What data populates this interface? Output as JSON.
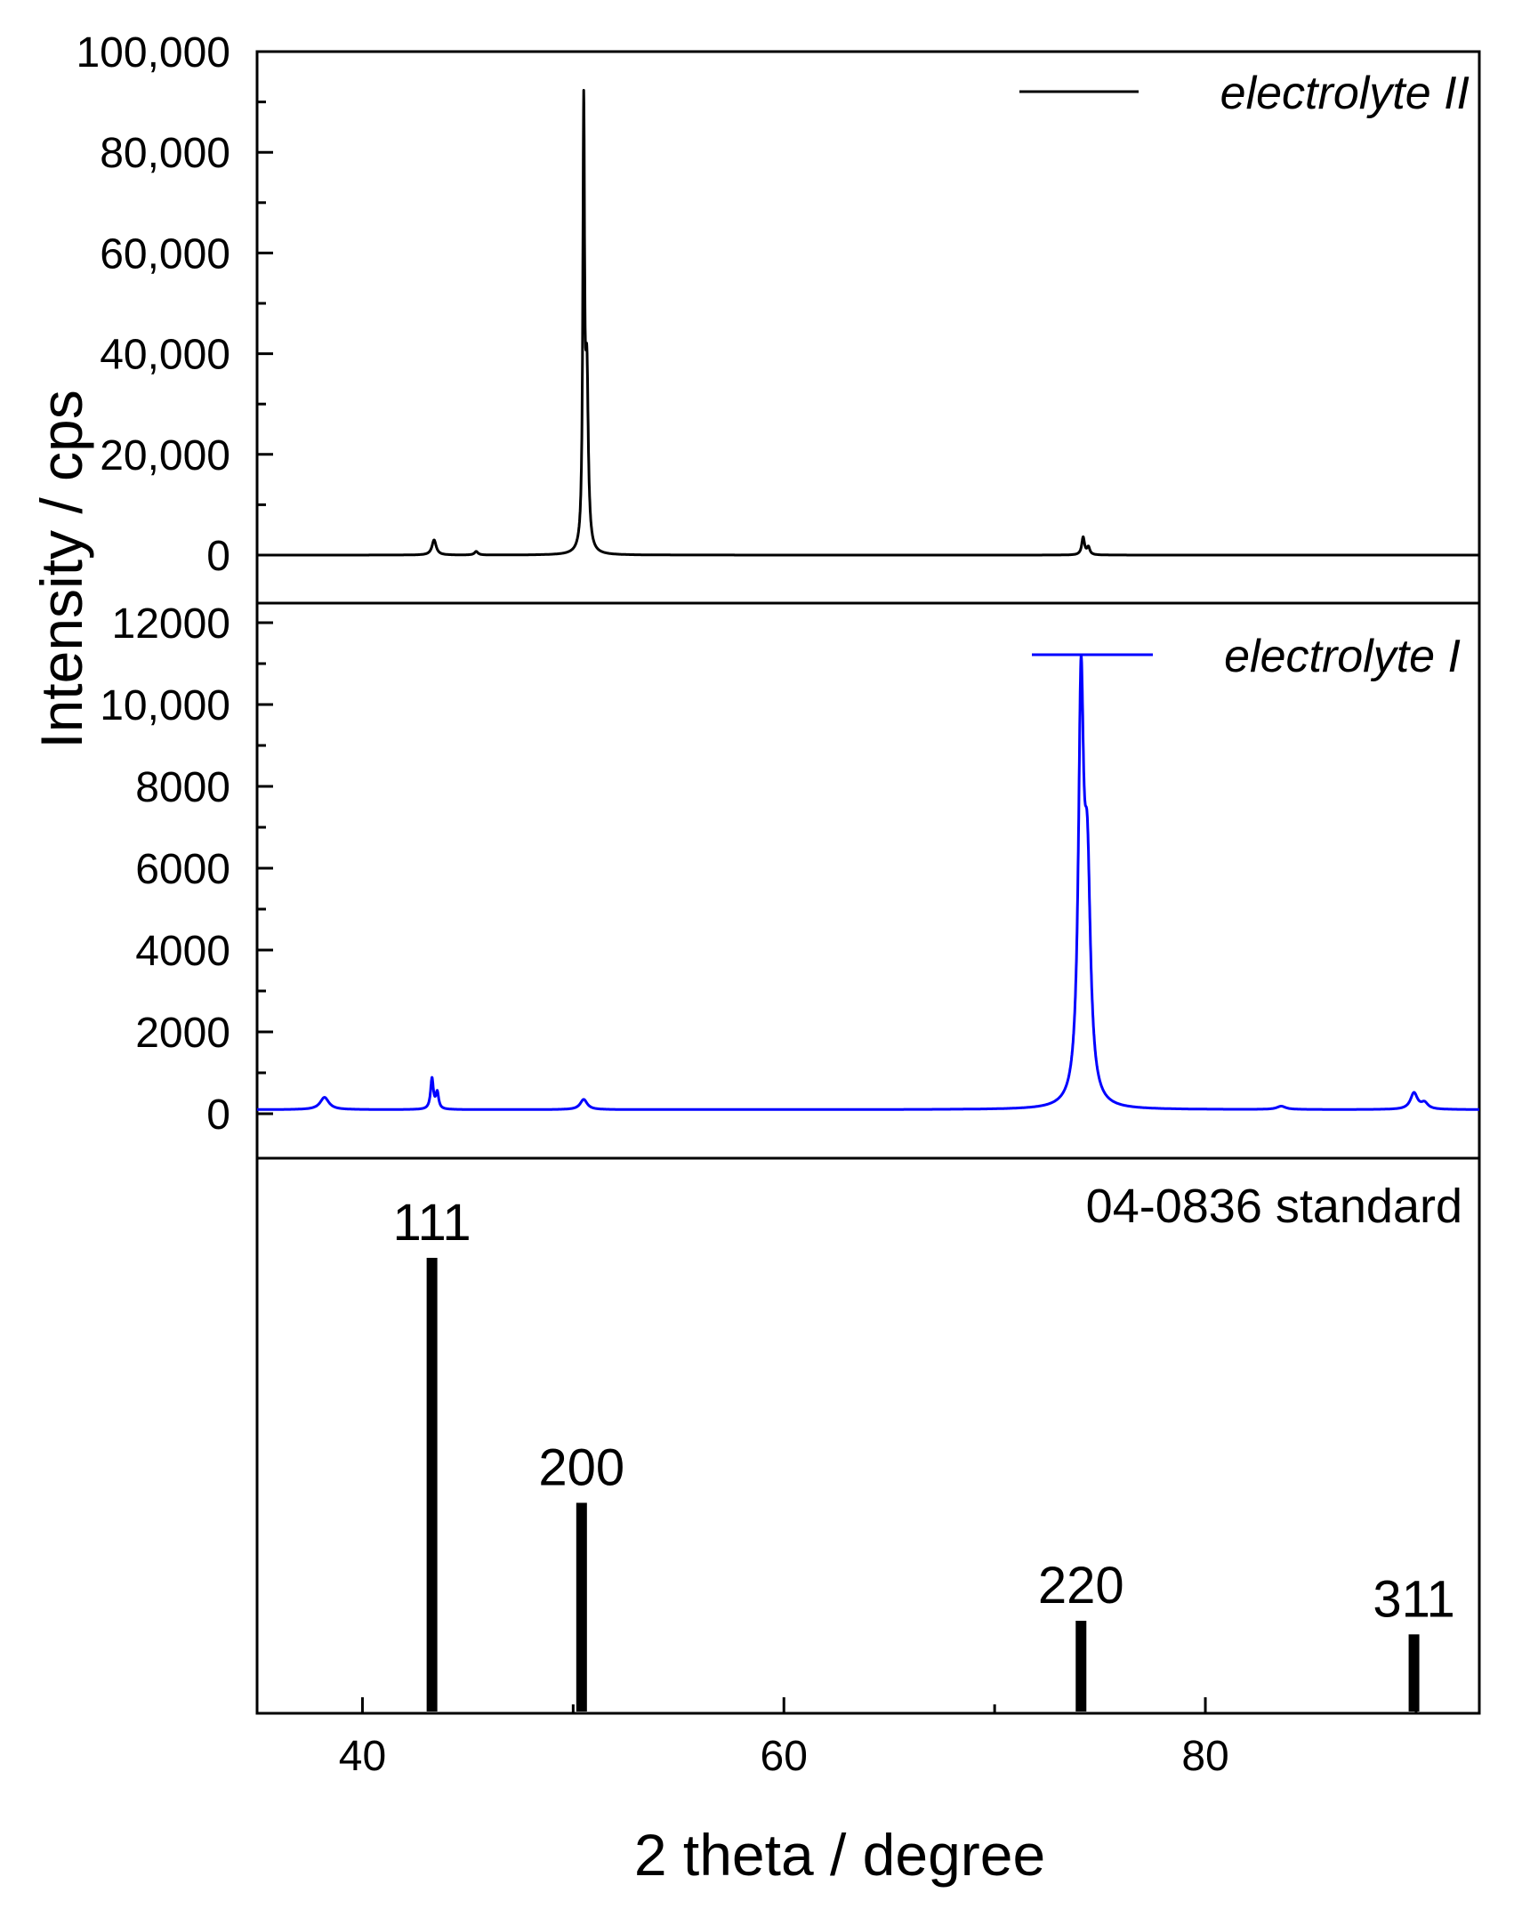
{
  "chart_data": {
    "type": "line",
    "xlabel": "2 theta / degree",
    "ylabel": "Intensity / cps",
    "xlim": [
      35,
      93
    ],
    "x_ticks": [
      40,
      60,
      80
    ],
    "x_tick_labels": [
      "40",
      "60",
      "80"
    ],
    "panels": [
      {
        "id": "top",
        "series_name": "electrolyte II",
        "color": "#000000",
        "ylim": [
          -5000,
          100000
        ],
        "y_ticks": [
          0,
          20000,
          40000,
          60000,
          80000,
          100000
        ],
        "y_tick_labels": [
          "0",
          "20,000",
          "40,000",
          "60,000",
          "80,000",
          "100,000"
        ],
        "baseline": 0,
        "peaks": [
          {
            "x": 43.4,
            "height": 3000,
            "width": 0.12
          },
          {
            "x": 45.4,
            "height": 700,
            "width": 0.1
          },
          {
            "x": 50.5,
            "height": 85000,
            "width": 0.05
          },
          {
            "x": 50.65,
            "height": 33000,
            "width": 0.08
          },
          {
            "x": 74.2,
            "height": 3500,
            "width": 0.08
          },
          {
            "x": 74.45,
            "height": 1500,
            "width": 0.08
          }
        ]
      },
      {
        "id": "middle",
        "series_name": "electrolyte I",
        "color": "#0000ff",
        "ylim": [
          -1000,
          12000
        ],
        "y_ticks": [
          0,
          2000,
          4000,
          6000,
          8000,
          10000,
          12000
        ],
        "y_tick_labels": [
          "0",
          "2000",
          "4000",
          "6000",
          "8000",
          "10,000",
          "12000"
        ],
        "baseline": 100,
        "peaks": [
          {
            "x": 38.2,
            "height": 300,
            "width": 0.25
          },
          {
            "x": 43.3,
            "height": 750,
            "width": 0.08
          },
          {
            "x": 43.55,
            "height": 400,
            "width": 0.08
          },
          {
            "x": 50.5,
            "height": 250,
            "width": 0.2
          },
          {
            "x": 74.1,
            "height": 9700,
            "width": 0.15
          },
          {
            "x": 74.4,
            "height": 5200,
            "width": 0.18
          },
          {
            "x": 83.6,
            "height": 80,
            "width": 0.25
          },
          {
            "x": 89.9,
            "height": 400,
            "width": 0.2
          },
          {
            "x": 90.4,
            "height": 150,
            "width": 0.2
          }
        ]
      },
      {
        "id": "bottom",
        "series_name": "04-0836 standard",
        "type": "stick",
        "color": "#000000",
        "ylim": [
          0,
          110
        ],
        "sticks": [
          {
            "x": 43.3,
            "intensity": 100,
            "label": "111"
          },
          {
            "x": 50.4,
            "intensity": 46,
            "label": "200"
          },
          {
            "x": 74.1,
            "intensity": 20,
            "label": "220"
          },
          {
            "x": 89.9,
            "intensity": 17,
            "label": "311"
          }
        ]
      }
    ]
  }
}
